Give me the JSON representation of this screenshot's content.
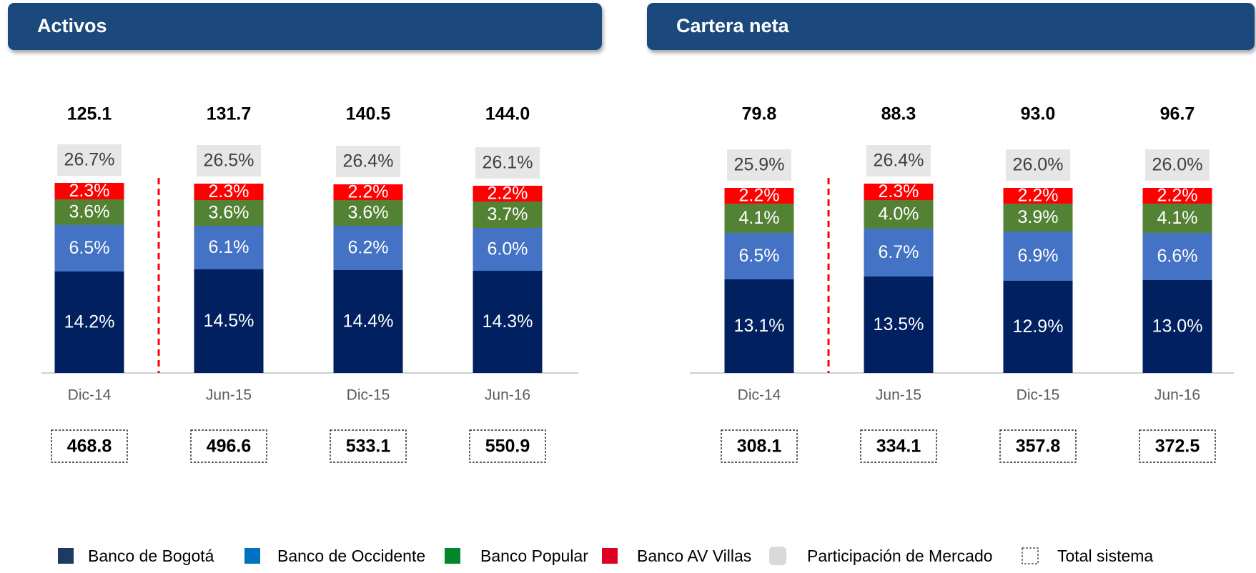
{
  "chart_data": [
    {
      "type": "stacked-bar",
      "title": "Activos",
      "categories": [
        "Dic-14",
        "Jun-15",
        "Dic-15",
        "Jun-16"
      ],
      "series": [
        {
          "color": "#002060",
          "values": [
            14.2,
            14.5,
            14.4,
            14.3
          ],
          "value_labels": [
            "14.2%",
            "14.5%",
            "14.4%",
            "14.3%"
          ]
        },
        {
          "color": "#4472c4",
          "values": [
            6.5,
            6.1,
            6.2,
            6.0
          ],
          "value_labels": [
            "6.5%",
            "6.1%",
            "6.2%",
            "6.0%"
          ]
        },
        {
          "color": "#548235",
          "values": [
            3.6,
            3.6,
            3.6,
            3.7
          ],
          "value_labels": [
            "3.6%",
            "3.6%",
            "3.6%",
            "3.7%"
          ]
        },
        {
          "color": "#ff0000",
          "values": [
            2.3,
            2.3,
            2.2,
            2.2
          ],
          "value_labels": [
            "2.3%",
            "2.3%",
            "2.2%",
            "2.2%"
          ]
        }
      ],
      "market_share": {
        "values": [
          26.7,
          26.5,
          26.4,
          26.1
        ],
        "value_labels": [
          "26.7%",
          "26.5%",
          "26.4%",
          "26.1%"
        ]
      },
      "totals": {
        "values": [
          125.1,
          131.7,
          140.5,
          144.0
        ],
        "value_labels": [
          "125.1",
          "131.7",
          "140.5",
          "144.0"
        ]
      },
      "system_totals": {
        "values": [
          468.8,
          496.6,
          533.1,
          550.9
        ],
        "value_labels": [
          "468.8",
          "496.6",
          "533.1",
          "550.9"
        ]
      }
    },
    {
      "type": "stacked-bar",
      "title": "Cartera neta",
      "categories": [
        "Dic-14",
        "Jun-15",
        "Dic-15",
        "Jun-16"
      ],
      "series": [
        {
          "color": "#002060",
          "values": [
            13.1,
            13.5,
            12.9,
            13.0
          ],
          "value_labels": [
            "13.1%",
            "13.5%",
            "12.9%",
            "13.0%"
          ]
        },
        {
          "color": "#4472c4",
          "values": [
            6.5,
            6.7,
            6.9,
            6.6
          ],
          "value_labels": [
            "6.5%",
            "6.7%",
            "6.9%",
            "6.6%"
          ]
        },
        {
          "color": "#548235",
          "values": [
            4.1,
            4.0,
            3.9,
            4.1
          ],
          "value_labels": [
            "4.1%",
            "4.0%",
            "3.9%",
            "4.1%"
          ]
        },
        {
          "color": "#ff0000",
          "values": [
            2.2,
            2.3,
            2.2,
            2.2
          ],
          "value_labels": [
            "2.2%",
            "2.3%",
            "2.2%",
            "2.2%"
          ]
        }
      ],
      "market_share": {
        "values": [
          25.9,
          26.4,
          26.0,
          26.0
        ],
        "value_labels": [
          "25.9%",
          "26.4%",
          "26.0%",
          "26.0%"
        ]
      },
      "totals": {
        "values": [
          79.8,
          88.3,
          93.0,
          96.7
        ],
        "value_labels": [
          "79.8",
          "88.3",
          "93.0",
          "96.7"
        ]
      },
      "system_totals": {
        "values": [
          308.1,
          334.1,
          357.8,
          372.5
        ],
        "value_labels": [
          "308.1",
          "334.1",
          "357.8",
          "372.5"
        ]
      }
    }
  ],
  "legend": [
    {
      "name": "Banco de Bogotá",
      "color": "#1f3864"
    },
    {
      "name": "Banco de Occidente",
      "color": "#0070c0"
    },
    {
      "name": "Banco Popular",
      "color": "#00882b"
    },
    {
      "name": "Banco AV Villas",
      "color": "#e00020"
    },
    {
      "name": "Participación de Mercado",
      "color": "#d9d9d9"
    },
    {
      "name": "Total sistema"
    }
  ]
}
